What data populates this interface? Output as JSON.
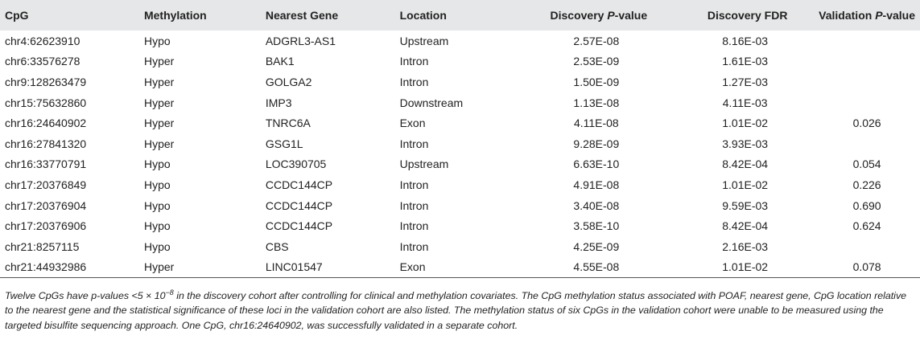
{
  "table": {
    "headers": {
      "cpg": "CpG",
      "methylation": "Methylation",
      "nearest_gene": "Nearest Gene",
      "location": "Location",
      "discovery_p_prefix": "Discovery ",
      "discovery_p_italic": "P",
      "discovery_p_suffix": "-value",
      "discovery_fdr": "Discovery FDR",
      "validation_p_prefix": "Validation ",
      "validation_p_italic": "P",
      "validation_p_suffix": "-value"
    },
    "rows": [
      {
        "cpg": "chr4:62623910",
        "methylation": "Hypo",
        "gene": "ADGRL3-AS1",
        "location": "Upstream",
        "dp": "2.57E-08",
        "fdr": "8.16E-03",
        "vp": ""
      },
      {
        "cpg": "chr6:33576278",
        "methylation": "Hyper",
        "gene": "BAK1",
        "location": "Intron",
        "dp": "2.53E-09",
        "fdr": "1.61E-03",
        "vp": ""
      },
      {
        "cpg": "chr9:128263479",
        "methylation": "Hyper",
        "gene": "GOLGA2",
        "location": "Intron",
        "dp": "1.50E-09",
        "fdr": "1.27E-03",
        "vp": ""
      },
      {
        "cpg": "chr15:75632860",
        "methylation": "Hyper",
        "gene": "IMP3",
        "location": "Downstream",
        "dp": "1.13E-08",
        "fdr": "4.11E-03",
        "vp": ""
      },
      {
        "cpg": "chr16:24640902",
        "methylation": "Hyper",
        "gene": "TNRC6A",
        "location": "Exon",
        "dp": "4.11E-08",
        "fdr": "1.01E-02",
        "vp": "0.026"
      },
      {
        "cpg": "chr16:27841320",
        "methylation": "Hyper",
        "gene": "GSG1L",
        "location": "Intron",
        "dp": "9.28E-09",
        "fdr": "3.93E-03",
        "vp": ""
      },
      {
        "cpg": "chr16:33770791",
        "methylation": "Hypo",
        "gene": "LOC390705",
        "location": "Upstream",
        "dp": "6.63E-10",
        "fdr": "8.42E-04",
        "vp": "0.054"
      },
      {
        "cpg": "chr17:20376849",
        "methylation": "Hypo",
        "gene": "CCDC144CP",
        "location": "Intron",
        "dp": "4.91E-08",
        "fdr": "1.01E-02",
        "vp": "0.226"
      },
      {
        "cpg": "chr17:20376904",
        "methylation": "Hypo",
        "gene": "CCDC144CP",
        "location": "Intron",
        "dp": "3.40E-08",
        "fdr": "9.59E-03",
        "vp": "0.690"
      },
      {
        "cpg": "chr17:20376906",
        "methylation": "Hypo",
        "gene": "CCDC144CP",
        "location": "Intron",
        "dp": "3.58E-10",
        "fdr": "8.42E-04",
        "vp": "0.624"
      },
      {
        "cpg": "chr21:8257115",
        "methylation": "Hypo",
        "gene": "CBS",
        "location": "Intron",
        "dp": "4.25E-09",
        "fdr": "2.16E-03",
        "vp": ""
      },
      {
        "cpg": "chr21:44932986",
        "methylation": "Hyper",
        "gene": "LINC01547",
        "location": "Exon",
        "dp": "4.55E-08",
        "fdr": "1.01E-02",
        "vp": "0.078"
      }
    ]
  },
  "footnote": {
    "part1": "Twelve CpGs have p-values <5 × 10",
    "exponent": "−8",
    "part2": " in the discovery cohort after controlling for clinical and methylation covariates. The CpG methylation status associated with POAF, nearest gene, CpG location relative to the nearest gene and the statistical significance of these loci in the validation cohort are also listed. The methylation status of six CpGs in the validation cohort were unable to be measured using the targeted bisulfite sequencing approach. One CpG, chr16:24640902, was successfully validated in a separate cohort."
  }
}
